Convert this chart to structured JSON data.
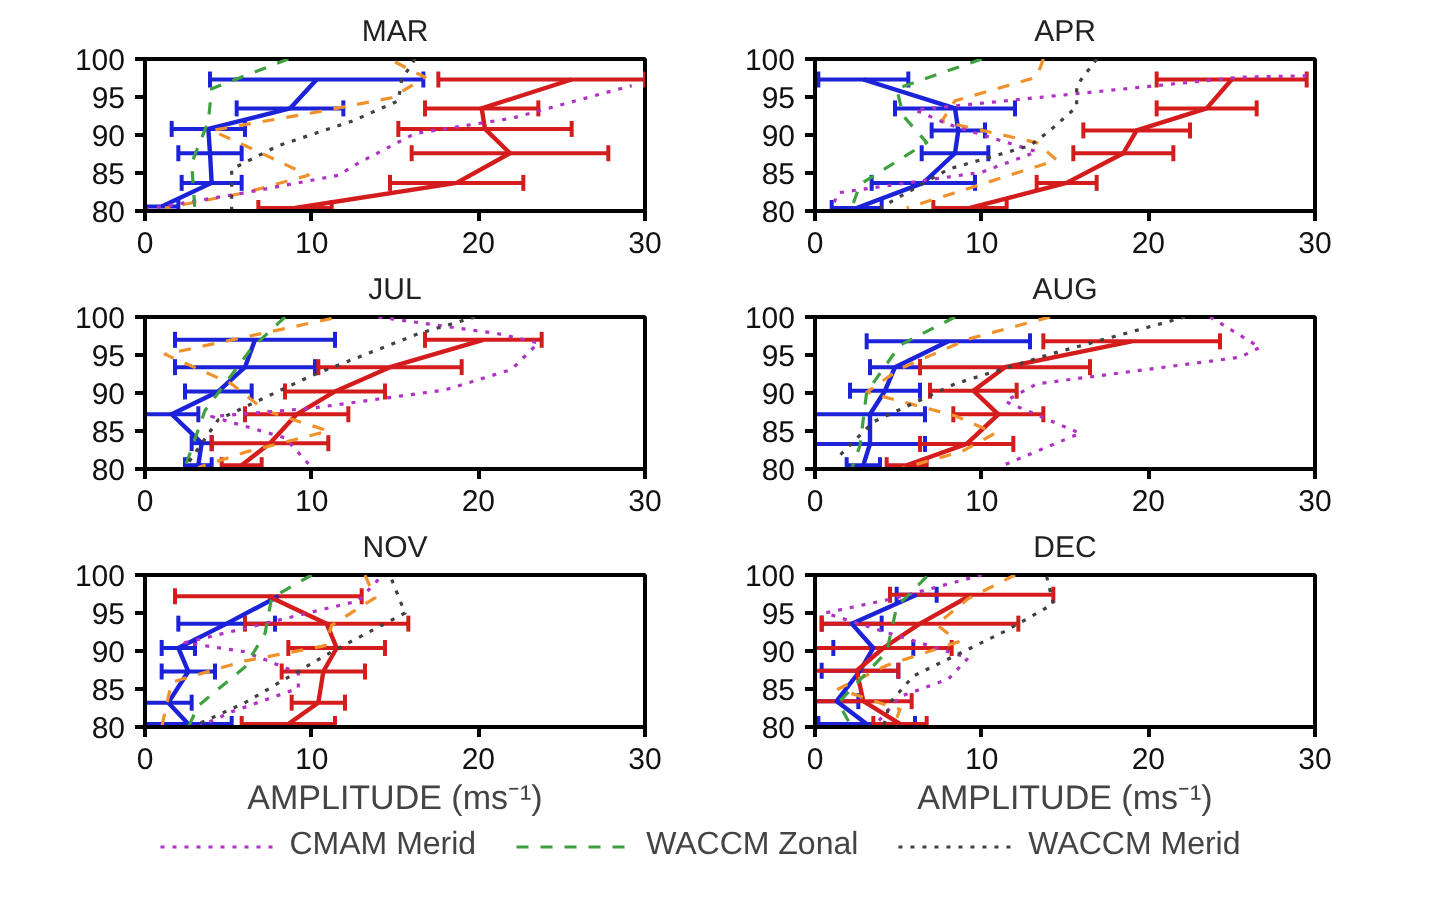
{
  "chart_data": [
    {
      "type": "line",
      "title": "MAR",
      "xlim": [
        0,
        30
      ],
      "xticks": [
        0,
        10,
        20,
        30
      ],
      "ylim": [
        80,
        100
      ],
      "yticks": [
        80,
        85,
        90,
        95,
        100
      ],
      "series": [
        {
          "color": "#1c22d8",
          "x": [
            10.3,
            8.7,
            3.8,
            3.9,
            4.0,
            1.0
          ],
          "values": [
            97.3,
            93.5,
            90.8,
            87.6,
            83.7,
            80.6
          ],
          "xerrors": [
            6.4,
            3.2,
            2.2,
            1.9,
            1.8,
            1.0
          ]
        },
        {
          "color": "#d41c1c",
          "x": [
            25.6,
            20.2,
            20.4,
            21.9,
            18.7,
            9.0
          ],
          "values": [
            97.3,
            93.5,
            90.8,
            87.6,
            83.7,
            80.4
          ],
          "xerrors": [
            [
              17.6,
              30
            ],
            3.4,
            5.2,
            5.9,
            4.0,
            2.2
          ]
        },
        {
          "color": "#f0922c",
          "line_style": "dashed",
          "x": [
            15.0,
            16.8,
            14.8,
            10.0,
            4.0,
            6.8,
            9.8,
            6.0,
            1.2
          ],
          "values": [
            99.6,
            97.6,
            94.9,
            92.9,
            90.6,
            87.8,
            84.7,
            82.4,
            80.4
          ]
        },
        {
          "color": "#b032c4",
          "line_style": "dotted",
          "x": [
            0,
            6.0,
            11.6,
            12.8,
            16.2,
            22.0,
            29.2
          ],
          "values": [
            80.2,
            82.4,
            84.7,
            86.3,
            90.2,
            92.2,
            96.5
          ]
        },
        {
          "color": "#3fa03f",
          "line_style": "dashed",
          "x": [
            8.6,
            4.0,
            3.8,
            2.8,
            3.0
          ],
          "values": [
            100,
            96.1,
            91.8,
            86.3,
            80
          ]
        },
        {
          "color": "#404040",
          "line_style": "dotted",
          "x": [
            16.2,
            15.4,
            15.2,
            12.4,
            8.0,
            5.2,
            5.2
          ],
          "values": [
            100,
            97.3,
            94.5,
            91.8,
            88.6,
            85.5,
            80
          ]
        }
      ]
    },
    {
      "type": "line",
      "title": "APR",
      "xlim": [
        0,
        30
      ],
      "xticks": [
        0,
        10,
        20,
        30
      ],
      "ylim": [
        80,
        100
      ],
      "yticks": [
        80,
        85,
        90,
        95,
        100
      ],
      "series": [
        {
          "color": "#1c22d8",
          "x": [
            2.9,
            8.4,
            8.6,
            8.4,
            6.5,
            2.5
          ],
          "values": [
            97.3,
            93.5,
            90.6,
            87.6,
            83.7,
            80.4
          ],
          "xerrors": [
            2.7,
            3.6,
            1.6,
            2.0,
            3.1,
            1.5
          ]
        },
        {
          "color": "#d41c1c",
          "x": [
            25.0,
            23.5,
            19.3,
            18.5,
            15.1,
            9.3
          ],
          "values": [
            97.3,
            93.5,
            90.6,
            87.6,
            83.7,
            80.4
          ],
          "xerrors": [
            4.5,
            3.0,
            3.2,
            3.0,
            1.8,
            2.2
          ]
        },
        {
          "color": "#f0922c",
          "line_style": "dashed",
          "x": [
            13.7,
            13.3,
            8.4,
            7.6,
            13.3,
            14.5,
            8.4,
            5.5
          ],
          "values": [
            100,
            97.6,
            94.5,
            91.8,
            89,
            86.7,
            82.4,
            80.4
          ]
        },
        {
          "color": "#b032c4",
          "line_style": "dotted",
          "x": [
            29.5,
            25.5,
            6.0,
            8.0,
            13.3,
            10.0,
            1.4,
            1.0
          ],
          "values": [
            97.8,
            97.6,
            93.3,
            91.4,
            87.8,
            85.1,
            82.4,
            80.4
          ]
        },
        {
          "color": "#3fa03f",
          "line_style": "dashed",
          "x": [
            10.0,
            4.9,
            5.3,
            6.7,
            2.7,
            2.2
          ],
          "values": [
            100,
            96.1,
            92.5,
            89,
            83.5,
            80.4
          ]
        },
        {
          "color": "#404040",
          "line_style": "dotted",
          "x": [
            16.9,
            15.7,
            15.7,
            14.1,
            12.9,
            8.0,
            3.9
          ],
          "values": [
            100,
            96.5,
            93.7,
            90.6,
            88.6,
            85.5,
            80.4
          ]
        }
      ]
    },
    {
      "type": "line",
      "title": "JUL",
      "xlim": [
        0,
        30
      ],
      "xticks": [
        0,
        10,
        20,
        30
      ],
      "ylim": [
        80,
        100
      ],
      "yticks": [
        80,
        85,
        90,
        95,
        100
      ],
      "series": [
        {
          "color": "#1c22d8",
          "x": [
            6.6,
            6.0,
            4.4,
            1.6,
            3.4,
            3.2
          ],
          "values": [
            97.0,
            93.4,
            90.2,
            87.2,
            83.4,
            80.5
          ],
          "xerrors": [
            4.8,
            4.2,
            2.0,
            1.6,
            0.6,
            0.8
          ]
        },
        {
          "color": "#d41c1c",
          "x": [
            20.3,
            14.7,
            11.4,
            9.1,
            7.5,
            5.8
          ],
          "values": [
            97.0,
            93.4,
            90.2,
            87.2,
            83.4,
            80.5
          ],
          "xerrors": [
            3.5,
            4.3,
            3.0,
            3.1,
            3.5,
            1.2
          ]
        },
        {
          "color": "#f0922c",
          "line_style": "dashed",
          "x": [
            11.2,
            1.2,
            5.2,
            7.2,
            11.0,
            6.0,
            3.2
          ],
          "values": [
            99.8,
            95.1,
            91.2,
            87.7,
            85,
            82.2,
            80.2
          ]
        },
        {
          "color": "#b032c4",
          "line_style": "dotted",
          "x": [
            14.0,
            21.2,
            23.6,
            22.0,
            18.0,
            10.0,
            4.0,
            8.4,
            10.0
          ],
          "values": [
            100,
            97.8,
            96.6,
            93.1,
            90.4,
            88,
            86.9,
            84.1,
            80.2
          ]
        },
        {
          "color": "#3fa03f",
          "line_style": "dashed",
          "x": [
            8.4,
            6.4,
            3.6,
            2.4
          ],
          "values": [
            100,
            95.9,
            87.7,
            80.2
          ]
        },
        {
          "color": "#404040",
          "line_style": "dotted",
          "x": [
            19.8,
            16.4,
            10.0,
            4.4,
            2.4
          ],
          "values": [
            100,
            97.8,
            92.3,
            86.5,
            80.2
          ]
        }
      ]
    },
    {
      "type": "line",
      "title": "AUG",
      "xlim": [
        0,
        30
      ],
      "xticks": [
        0,
        10,
        20,
        30
      ],
      "ylim": [
        80,
        100
      ],
      "yticks": [
        80,
        85,
        90,
        95,
        100
      ],
      "series": [
        {
          "color": "#1c22d8",
          "x": [
            8.0,
            4.8,
            4.2,
            3.3,
            3.3,
            2.9
          ],
          "values": [
            96.8,
            93.4,
            90.3,
            87.2,
            83.3,
            80.5
          ],
          "xerrors": [
            4.9,
            1.5,
            2.1,
            3.3,
            3.3,
            1.0
          ]
        },
        {
          "color": "#d41c1c",
          "x": [
            19.0,
            11.4,
            9.5,
            11.0,
            9.1,
            5.5
          ],
          "values": [
            96.8,
            93.4,
            90.3,
            87.2,
            83.3,
            80.5
          ],
          "xerrors": [
            5.3,
            5.1,
            2.6,
            2.7,
            2.8,
            1.2
          ]
        },
        {
          "color": "#f0922c",
          "line_style": "dashed",
          "x": [
            14.1,
            9.2,
            5.1,
            3.1,
            8.4,
            10.8,
            8.8,
            5.1
          ],
          "values": [
            100,
            97.1,
            93.2,
            90.1,
            87,
            84.7,
            82.3,
            80
          ]
        },
        {
          "color": "#b032c4",
          "line_style": "dotted",
          "x": [
            23.7,
            26.7,
            25.5,
            13.3,
            11.4,
            15.9,
            11.2
          ],
          "values": [
            100,
            96.0,
            94.7,
            91.2,
            88.9,
            84.7,
            80.4
          ]
        },
        {
          "color": "#3fa03f",
          "line_style": "dashed",
          "x": [
            8.4,
            5.1,
            3.1,
            2.7,
            2.2
          ],
          "values": [
            100,
            96.3,
            90.1,
            83.1,
            80
          ]
        },
        {
          "color": "#404040",
          "line_style": "dotted",
          "x": [
            22.2,
            14.1,
            8.4,
            3.5,
            1.4
          ],
          "values": [
            100,
            95.1,
            91.2,
            86.2,
            81.6
          ]
        }
      ]
    },
    {
      "type": "line",
      "title": "NOV",
      "xlabel": "AMPLITUDE (ms⁻¹)",
      "xlim": [
        0,
        30
      ],
      "xticks": [
        0,
        10,
        20,
        30
      ],
      "ylim": [
        80,
        100
      ],
      "yticks": [
        80,
        85,
        90,
        95,
        100
      ],
      "series": [
        {
          "color": "#1c22d8",
          "x": [
            8.0,
            4.9,
            2.0,
            2.6,
            1.4,
            2.6
          ],
          "values": [
            97.2,
            93.6,
            90.4,
            87.3,
            83.2,
            80.4
          ],
          "xerrors": [
            null,
            2.9,
            1.0,
            1.6,
            1.4,
            2.6
          ]
        },
        {
          "color": "#d41c1c",
          "x": [
            7.4,
            10.9,
            11.5,
            10.7,
            10.4,
            8.6
          ],
          "values": [
            97.2,
            93.6,
            90.4,
            87.3,
            83.2,
            80.4
          ],
          "xerrors": [
            5.6,
            4.9,
            2.9,
            2.5,
            1.6,
            2.8
          ]
        },
        {
          "color": "#f0922c",
          "line_style": "dashed",
          "x": [
            13.2,
            13.8,
            11.2,
            10.8,
            6.0,
            1.6,
            1.0
          ],
          "values": [
            100,
            97,
            93.4,
            90.7,
            88.7,
            85.9,
            80
          ]
        },
        {
          "color": "#b032c4",
          "line_style": "dotted",
          "x": [
            14.0,
            12.8,
            6.0,
            2.4,
            6.0,
            9.2,
            9.2,
            5.2,
            3.2
          ],
          "values": [
            99.4,
            96.6,
            93,
            91.1,
            89.9,
            87.1,
            85.1,
            82,
            80
          ]
        },
        {
          "color": "#3fa03f",
          "line_style": "dashed",
          "x": [
            10.0,
            7.6,
            7.2,
            6.0,
            3.2,
            2.6
          ],
          "values": [
            100,
            97,
            92.3,
            87.9,
            82.8,
            80
          ]
        },
        {
          "color": "#404040",
          "line_style": "dotted",
          "x": [
            14.8,
            15.6,
            11.2,
            6.0,
            4.0,
            2.8
          ],
          "values": [
            99.4,
            95,
            89.9,
            83.2,
            81.2,
            80
          ]
        }
      ]
    },
    {
      "type": "line",
      "title": "DEC",
      "xlabel": "AMPLITUDE (ms⁻¹)",
      "legend": "bottom",
      "xlim": [
        0,
        30
      ],
      "xticks": [
        0,
        10,
        20,
        30
      ],
      "ylim": [
        80,
        100
      ],
      "yticks": [
        80,
        85,
        90,
        95,
        100
      ],
      "series": [
        {
          "color": "#1c22d8",
          "x": [
            6.1,
            2.2,
            3.5,
            2.7,
            1.3,
            3.1
          ],
          "values": [
            97.4,
            93.6,
            90.4,
            87.4,
            83.4,
            80.4
          ],
          "xerrors": [
            1.2,
            1.8,
            2.4,
            2.3,
            1.3,
            2.9
          ]
        },
        {
          "color": "#d41c1c",
          "x": [
            9.4,
            6.3,
            4.1,
            2.5,
            2.9,
            5.1
          ],
          "values": [
            97.4,
            93.6,
            90.4,
            87.4,
            83.4,
            80.4
          ],
          "xerrors": [
            4.9,
            5.9,
            4.1,
            2.5,
            2.9,
            1.6
          ]
        },
        {
          "color": "#f0922c",
          "line_style": "dashed",
          "x": [
            12.0,
            9.2,
            7.3,
            8.6,
            4.3,
            1.4,
            5.1,
            4.7
          ],
          "values": [
            100,
            96.9,
            93.5,
            91.2,
            88.1,
            85,
            82.3,
            80
          ]
        },
        {
          "name": "CMAM Merid",
          "color": "#b032c4",
          "line_style": "dotted",
          "x": [
            10.0,
            4.9,
            0.6,
            5.1,
            9.2,
            8.0,
            5.1,
            3.5
          ],
          "values": [
            100,
            97,
            95,
            91.9,
            89.1,
            86.3,
            84,
            80
          ]
        },
        {
          "name": "WACCM Zonal",
          "color": "#3fa03f",
          "line_style": "dashed",
          "x": [
            6.7,
            4.9,
            4.3,
            1.4,
            2.2
          ],
          "values": [
            99.8,
            95.8,
            89.9,
            83.2,
            80
          ]
        },
        {
          "name": "WACCM Merid",
          "color": "#404040",
          "line_style": "dotted",
          "x": [
            13.9,
            14.3,
            11.4,
            5.9,
            4.5,
            4.1
          ],
          "values": [
            99.8,
            96.2,
            92.6,
            86.7,
            83.2,
            80
          ]
        }
      ]
    }
  ]
}
